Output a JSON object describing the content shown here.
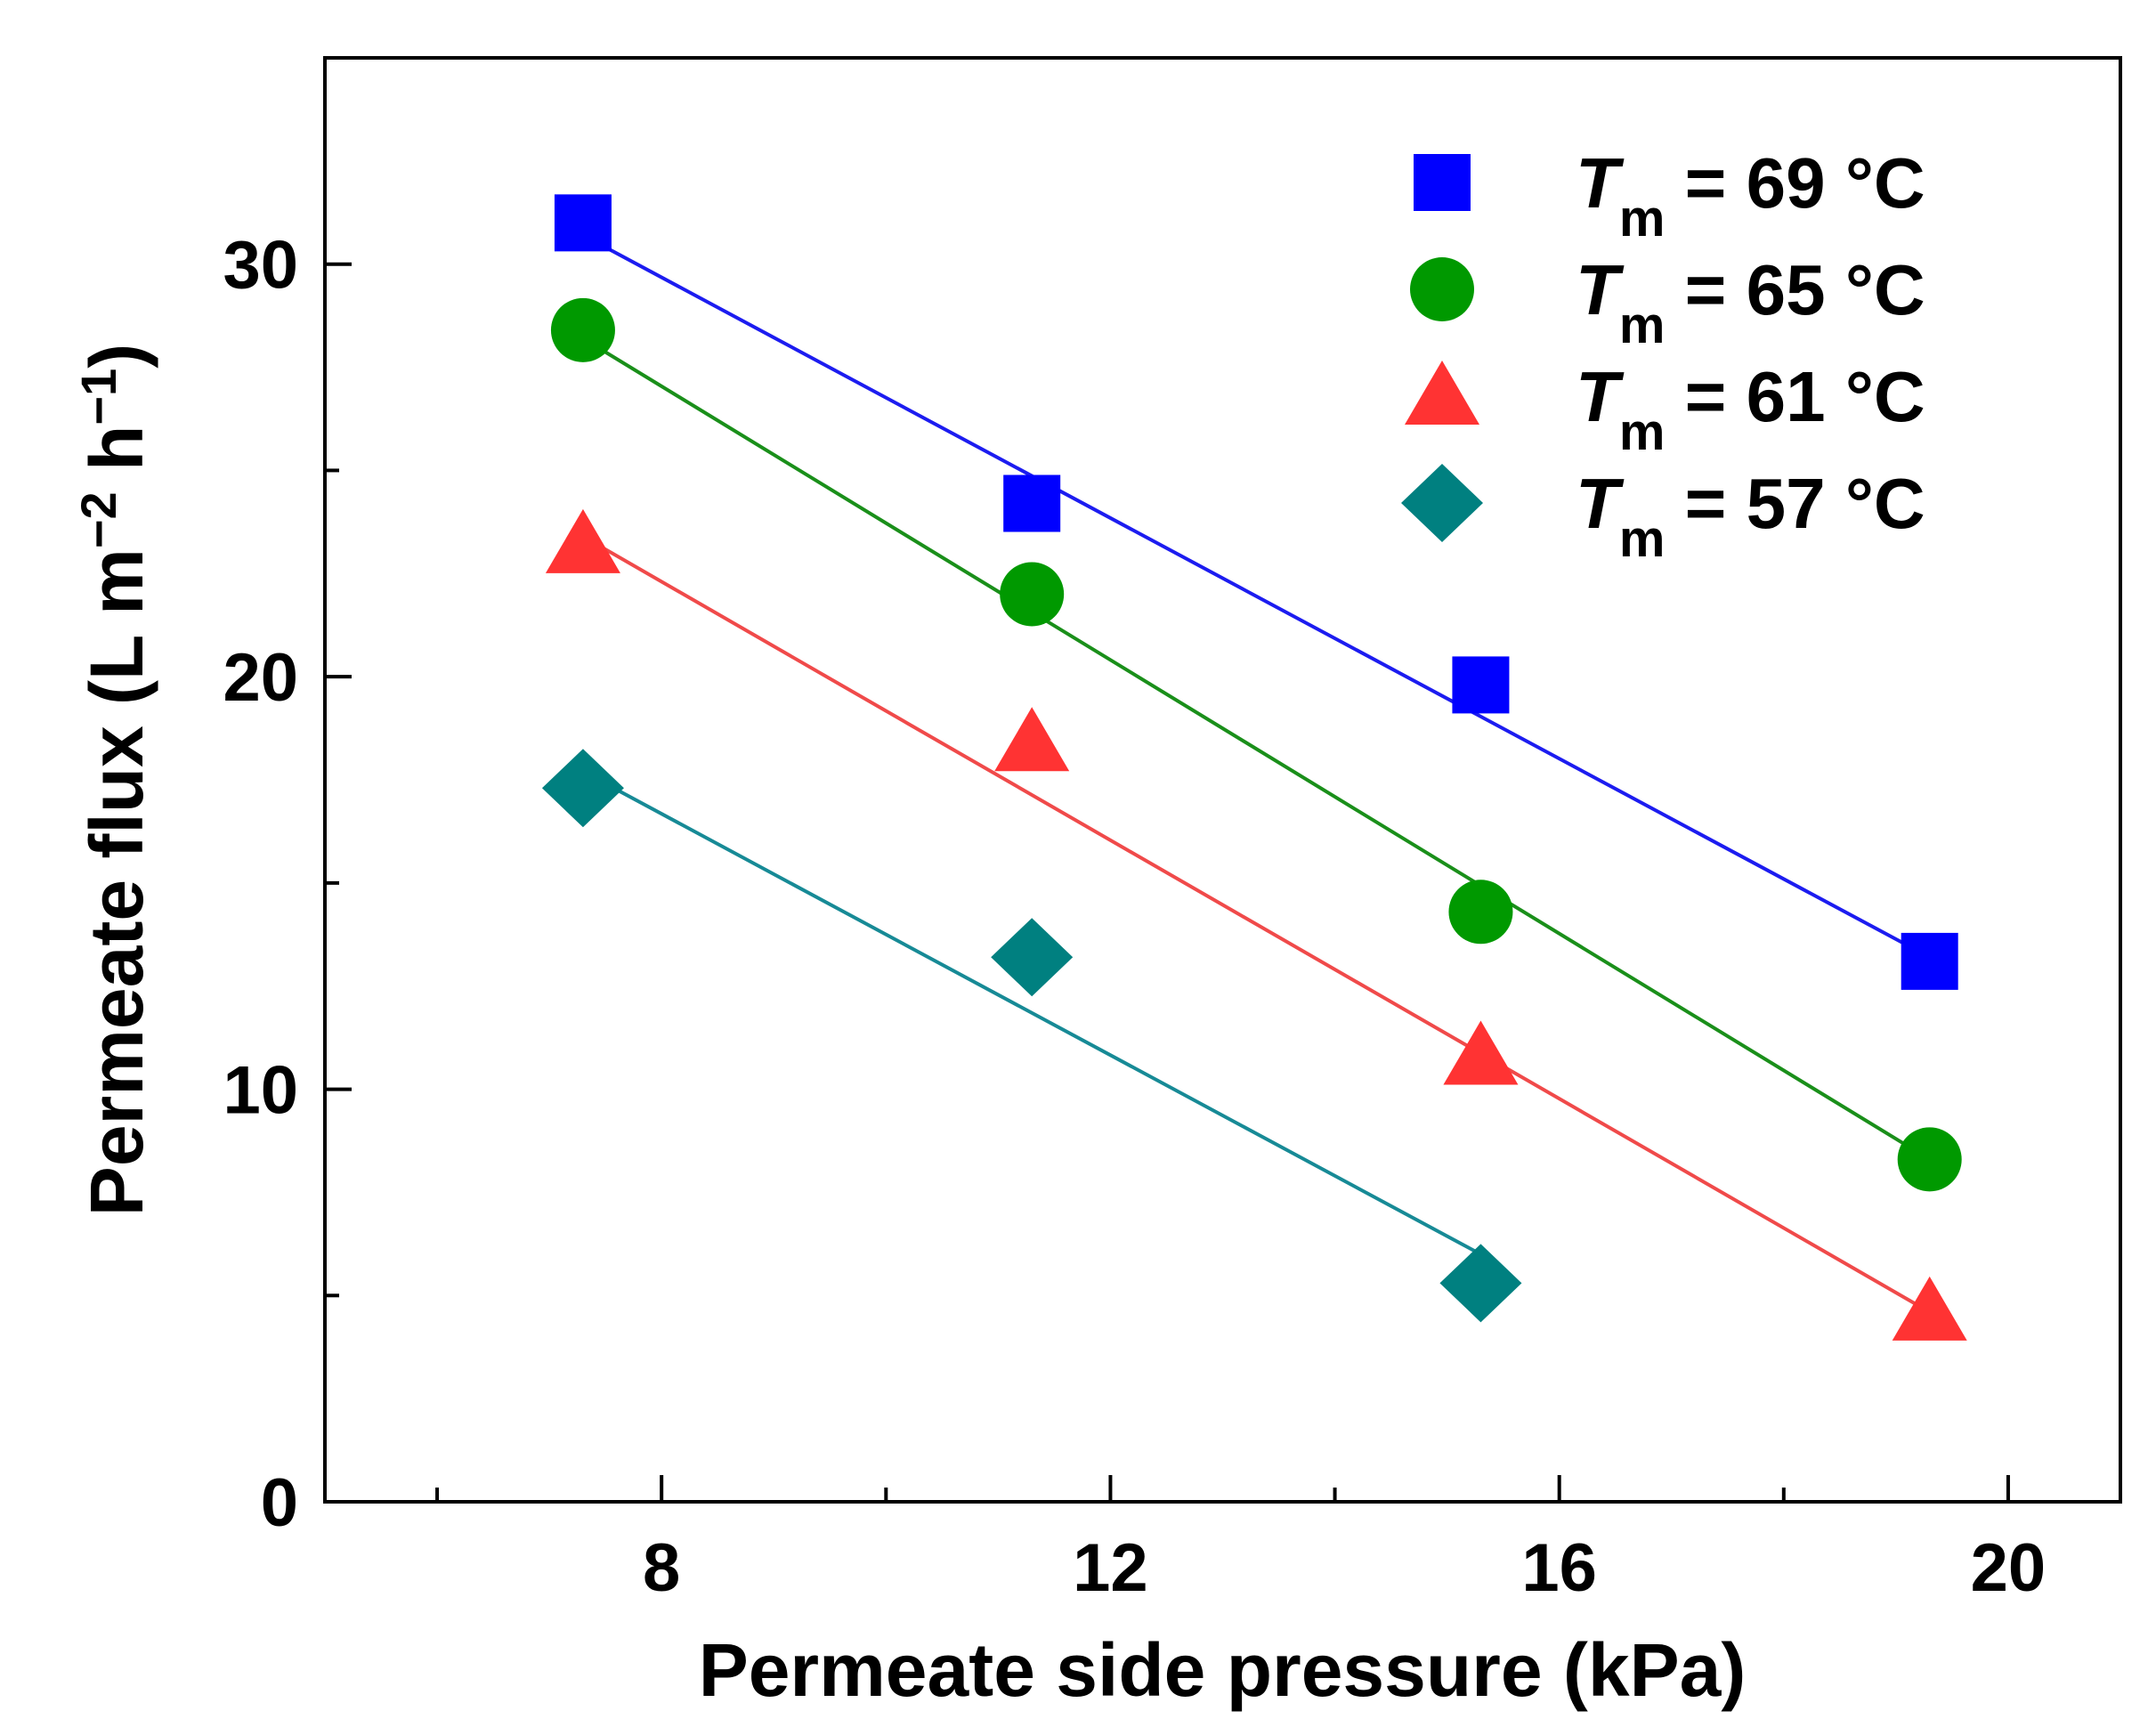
{
  "chart_data": {
    "type": "scatter",
    "xlabel": "Permeate side pressure (kPa)",
    "ylabel_prefix": "Permeate flux (L m",
    "ylabel_exp1": "−2",
    "ylabel_mid": " h",
    "ylabel_exp2": "−1",
    "ylabel_suffix": ")",
    "xlim": [
      5,
      21
    ],
    "ylim": [
      0,
      35
    ],
    "xticks": [
      8,
      12,
      16,
      20
    ],
    "xtick_labels": [
      "8",
      "12",
      "16",
      "20"
    ],
    "xminor": [
      6,
      10,
      14,
      18
    ],
    "yticks": [
      0,
      10,
      20,
      30
    ],
    "ytick_labels": [
      "0",
      "10",
      "20",
      "30"
    ],
    "yminor": [
      5,
      15,
      25
    ],
    "legend_position": "top-right",
    "series": [
      {
        "name": "69 °C",
        "legend_var": "T",
        "legend_sub": "m",
        "legend_value": " = 69 °C",
        "marker": "square",
        "color": "#0000ff",
        "line_color": "#1c1cf0",
        "x": [
          7.3,
          11.3,
          15.3,
          19.3
        ],
        "y": [
          31.0,
          24.2,
          19.8,
          13.1
        ],
        "fit": [
          [
            7.3,
            30.7
          ],
          [
            19.3,
            13.2
          ]
        ]
      },
      {
        "name": "65 °C",
        "legend_var": "T",
        "legend_sub": "m",
        "legend_value": " = 65 °C",
        "marker": "circle",
        "color": "#009900",
        "line_color": "#1a8f1a",
        "x": [
          7.3,
          11.3,
          15.3,
          19.3
        ],
        "y": [
          28.4,
          22.0,
          14.3,
          8.3
        ],
        "fit": [
          [
            7.3,
            28.2
          ],
          [
            19.3,
            8.3
          ]
        ]
      },
      {
        "name": "61 °C",
        "legend_var": "T",
        "legend_sub": "m",
        "legend_value": " = 61 °C",
        "marker": "triangle",
        "color": "#ff3333",
        "line_color": "#f04a4a",
        "x": [
          7.3,
          11.3,
          15.3,
          19.3
        ],
        "y": [
          23.2,
          18.4,
          10.8,
          4.6
        ],
        "fit": [
          [
            7.3,
            23.4
          ],
          [
            19.3,
            4.6
          ]
        ]
      },
      {
        "name": "57 °C",
        "legend_var": "T",
        "legend_sub": "m",
        "legend_value": " = 57 °C",
        "marker": "diamond",
        "color": "#008080",
        "line_color": "#178a96",
        "x": [
          7.3,
          11.3,
          15.3
        ],
        "y": [
          17.3,
          13.2,
          5.3
        ],
        "fit": [
          [
            7.3,
            17.7
          ],
          [
            15.3,
            6.0
          ]
        ]
      }
    ]
  }
}
